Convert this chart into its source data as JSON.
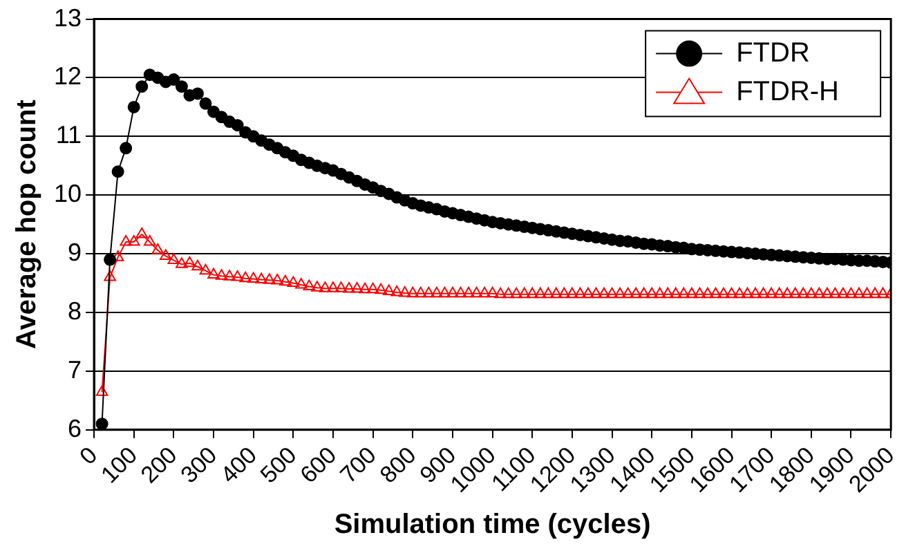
{
  "chart_data": {
    "type": "line",
    "xlabel": "Simulation time (cycles)",
    "ylabel": "Average hop count",
    "x": [
      20,
      40,
      60,
      80,
      100,
      120,
      140,
      160,
      180,
      200,
      220,
      240,
      260,
      280,
      300,
      320,
      340,
      360,
      380,
      400,
      420,
      440,
      460,
      480,
      500,
      520,
      540,
      560,
      580,
      600,
      620,
      640,
      660,
      680,
      700,
      720,
      740,
      760,
      780,
      800,
      820,
      840,
      860,
      880,
      900,
      920,
      940,
      960,
      980,
      1000,
      1020,
      1040,
      1060,
      1080,
      1100,
      1120,
      1140,
      1160,
      1180,
      1200,
      1220,
      1240,
      1260,
      1280,
      1300,
      1320,
      1340,
      1360,
      1380,
      1400,
      1420,
      1440,
      1460,
      1480,
      1500,
      1520,
      1540,
      1560,
      1580,
      1600,
      1620,
      1640,
      1660,
      1680,
      1700,
      1720,
      1740,
      1760,
      1780,
      1800,
      1820,
      1840,
      1860,
      1880,
      1900,
      1920,
      1940,
      1960,
      1980,
      2000
    ],
    "series": [
      {
        "name": "FTDR",
        "color": "#000000",
        "marker": "circle",
        "values": [
          6.1,
          8.9,
          10.4,
          10.8,
          11.5,
          11.85,
          12.05,
          12.0,
          11.93,
          11.97,
          11.85,
          11.7,
          11.73,
          11.56,
          11.42,
          11.33,
          11.25,
          11.19,
          11.07,
          11.0,
          10.93,
          10.86,
          10.8,
          10.73,
          10.67,
          10.6,
          10.55,
          10.5,
          10.46,
          10.42,
          10.36,
          10.3,
          10.24,
          10.18,
          10.13,
          10.07,
          10.02,
          9.96,
          9.91,
          9.86,
          9.82,
          9.79,
          9.76,
          9.72,
          9.69,
          9.66,
          9.63,
          9.6,
          9.57,
          9.54,
          9.52,
          9.5,
          9.48,
          9.46,
          9.44,
          9.42,
          9.4,
          9.38,
          9.36,
          9.34,
          9.32,
          9.3,
          9.28,
          9.26,
          9.24,
          9.22,
          9.21,
          9.19,
          9.17,
          9.16,
          9.14,
          9.13,
          9.11,
          9.1,
          9.08,
          9.07,
          9.06,
          9.05,
          9.04,
          9.03,
          9.02,
          9.01,
          9.0,
          8.99,
          8.98,
          8.97,
          8.96,
          8.95,
          8.94,
          8.93,
          8.92,
          8.91,
          8.91,
          8.9,
          8.89,
          8.88,
          8.88,
          8.87,
          8.86,
          8.85
        ]
      },
      {
        "name": "FTDR-H",
        "color": "#ff0000",
        "marker": "triangle",
        "values": [
          6.64,
          8.6,
          8.94,
          9.2,
          9.2,
          9.33,
          9.2,
          9.06,
          8.96,
          8.89,
          8.82,
          8.84,
          8.78,
          8.71,
          8.64,
          8.62,
          8.61,
          8.6,
          8.58,
          8.57,
          8.56,
          8.55,
          8.54,
          8.52,
          8.5,
          8.47,
          8.44,
          8.42,
          8.41,
          8.41,
          8.41,
          8.4,
          8.4,
          8.39,
          8.39,
          8.38,
          8.36,
          8.34,
          8.33,
          8.32,
          8.32,
          8.32,
          8.32,
          8.32,
          8.32,
          8.32,
          8.32,
          8.32,
          8.32,
          8.32,
          8.31,
          8.31,
          8.31,
          8.31,
          8.31,
          8.31,
          8.31,
          8.31,
          8.31,
          8.31,
          8.31,
          8.31,
          8.31,
          8.31,
          8.31,
          8.31,
          8.31,
          8.31,
          8.31,
          8.31,
          8.31,
          8.31,
          8.31,
          8.31,
          8.31,
          8.31,
          8.31,
          8.31,
          8.31,
          8.31,
          8.31,
          8.31,
          8.31,
          8.31,
          8.31,
          8.31,
          8.31,
          8.31,
          8.31,
          8.31,
          8.31,
          8.31,
          8.31,
          8.31,
          8.31,
          8.31,
          8.31,
          8.31,
          8.31,
          8.31
        ]
      }
    ],
    "xlim": [
      0,
      2000
    ],
    "xticks": [
      0,
      100,
      200,
      300,
      400,
      500,
      600,
      700,
      800,
      900,
      1000,
      1100,
      1200,
      1300,
      1400,
      1500,
      1600,
      1700,
      1800,
      1900,
      2000
    ],
    "ylim": [
      6,
      13
    ],
    "yticks": [
      6,
      7,
      8,
      9,
      10,
      11,
      12,
      13
    ],
    "grid": "y",
    "legend": "top right",
    "line_style": "solid"
  }
}
